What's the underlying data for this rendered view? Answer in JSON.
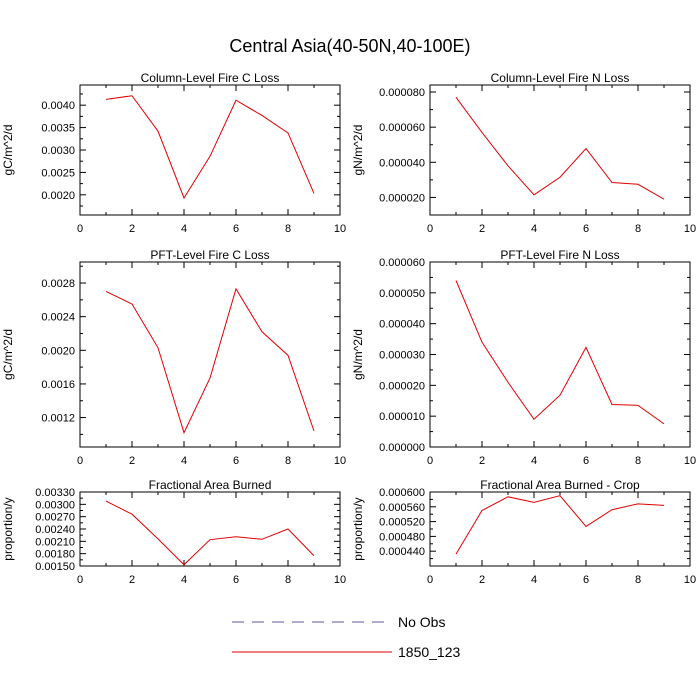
{
  "title": "Central Asia(40-50N,40-100E)",
  "legend": [
    {
      "label": "No Obs",
      "color": "#5a5aa0",
      "dash": true
    },
    {
      "label": "1850_123",
      "color": "#e00000",
      "dash": false
    }
  ],
  "chart_data": [
    {
      "type": "line",
      "title": "Column-Level Fire C Loss",
      "ylabel": "gC/m^2/d",
      "xlim": [
        0,
        10
      ],
      "ylim": [
        0.00155,
        0.00445
      ],
      "xticks": [
        "0",
        "2",
        "4",
        "6",
        "8",
        "10"
      ],
      "yticks": [
        "0.0020",
        "0.0025",
        "0.0030",
        "0.0035",
        "0.0040"
      ],
      "x": [
        1,
        2,
        3,
        4,
        5,
        6,
        7,
        8,
        9
      ],
      "series": [
        {
          "name": "1850_123",
          "color": "#e00000",
          "values": [
            0.00413,
            0.00421,
            0.00342,
            0.00193,
            0.00286,
            0.00411,
            0.00377,
            0.00338,
            0.00203
          ]
        }
      ]
    },
    {
      "type": "line",
      "title": "Column-Level Fire N Loss",
      "ylabel": "gN/m^2/d",
      "xlim": [
        0,
        10
      ],
      "ylim": [
        1e-05,
        8.4e-05
      ],
      "xticks": [
        "0",
        "2",
        "4",
        "6",
        "8",
        "10"
      ],
      "yticks": [
        "0.000020",
        "0.000040",
        "0.000060",
        "0.000080"
      ],
      "x": [
        1,
        2,
        3,
        4,
        5,
        6,
        7,
        8,
        9
      ],
      "series": [
        {
          "name": "1850_123",
          "color": "#e00000",
          "values": [
            7.7e-05,
            5.7e-05,
            3.8e-05,
            2.15e-05,
            3.15e-05,
            4.78e-05,
            2.85e-05,
            2.75e-05,
            1.9e-05
          ]
        }
      ]
    },
    {
      "type": "line",
      "title": "PFT-Level Fire C Loss",
      "ylabel": "gC/m^2/d",
      "xlim": [
        0,
        10
      ],
      "ylim": [
        0.00085,
        0.00305
      ],
      "xticks": [
        "0",
        "2",
        "4",
        "6",
        "8",
        "10"
      ],
      "yticks": [
        "0.0012",
        "0.0016",
        "0.0020",
        "0.0024",
        "0.0028"
      ],
      "x": [
        1,
        2,
        3,
        4,
        5,
        6,
        7,
        8,
        9
      ],
      "series": [
        {
          "name": "1850_123",
          "color": "#e00000",
          "values": [
            0.0027,
            0.00255,
            0.00203,
            0.00102,
            0.00167,
            0.00273,
            0.00222,
            0.00194,
            0.00104
          ]
        }
      ]
    },
    {
      "type": "line",
      "title": "PFT-Level Fire N Loss",
      "ylabel": "gN/m^2/d",
      "xlim": [
        0,
        10
      ],
      "ylim": [
        0.0,
        6e-05
      ],
      "xticks": [
        "0",
        "2",
        "4",
        "6",
        "8",
        "10"
      ],
      "yticks": [
        "0.000000",
        "0.000010",
        "0.000020",
        "0.000030",
        "0.000040",
        "0.000050",
        "0.000060"
      ],
      "x": [
        1,
        2,
        3,
        4,
        5,
        6,
        7,
        8,
        9
      ],
      "series": [
        {
          "name": "1850_123",
          "color": "#e00000",
          "values": [
            5.4e-05,
            3.4e-05,
            2.1e-05,
            9e-06,
            1.68e-05,
            3.23e-05,
            1.38e-05,
            1.35e-05,
            7.5e-06
          ]
        }
      ]
    },
    {
      "type": "line",
      "title": "Fractional Area Burned",
      "ylabel": "proportion/y",
      "xlim": [
        0,
        10
      ],
      "ylim": [
        0.0015,
        0.0033
      ],
      "xticks": [
        "0",
        "2",
        "4",
        "6",
        "8",
        "10"
      ],
      "yticks": [
        "0.00150",
        "0.00180",
        "0.00210",
        "0.00240",
        "0.00270",
        "0.00300",
        "0.00330"
      ],
      "x": [
        1,
        2,
        3,
        4,
        5,
        6,
        7,
        8,
        9
      ],
      "series": [
        {
          "name": "1850_123",
          "color": "#e00000",
          "values": [
            0.00308,
            0.00276,
            0.00216,
            0.00153,
            0.00214,
            0.00221,
            0.00215,
            0.0024,
            0.00175
          ]
        }
      ]
    },
    {
      "type": "line",
      "title": "Fractional Area Burned - Crop",
      "ylabel": "proportion/y",
      "xlim": [
        0,
        10
      ],
      "ylim": [
        0.0004,
        0.0006
      ],
      "xticks": [
        "0",
        "2",
        "4",
        "6",
        "8",
        "10"
      ],
      "yticks": [
        "0.000440",
        "0.000480",
        "0.000520",
        "0.000560",
        "0.000600"
      ],
      "x": [
        1,
        2,
        3,
        4,
        5,
        6,
        7,
        8,
        9
      ],
      "series": [
        {
          "name": "1850_123",
          "color": "#e00000",
          "values": [
            0.000432,
            0.00055,
            0.000587,
            0.000572,
            0.00059,
            0.000507,
            0.000552,
            0.000568,
            0.000564
          ]
        }
      ]
    }
  ]
}
